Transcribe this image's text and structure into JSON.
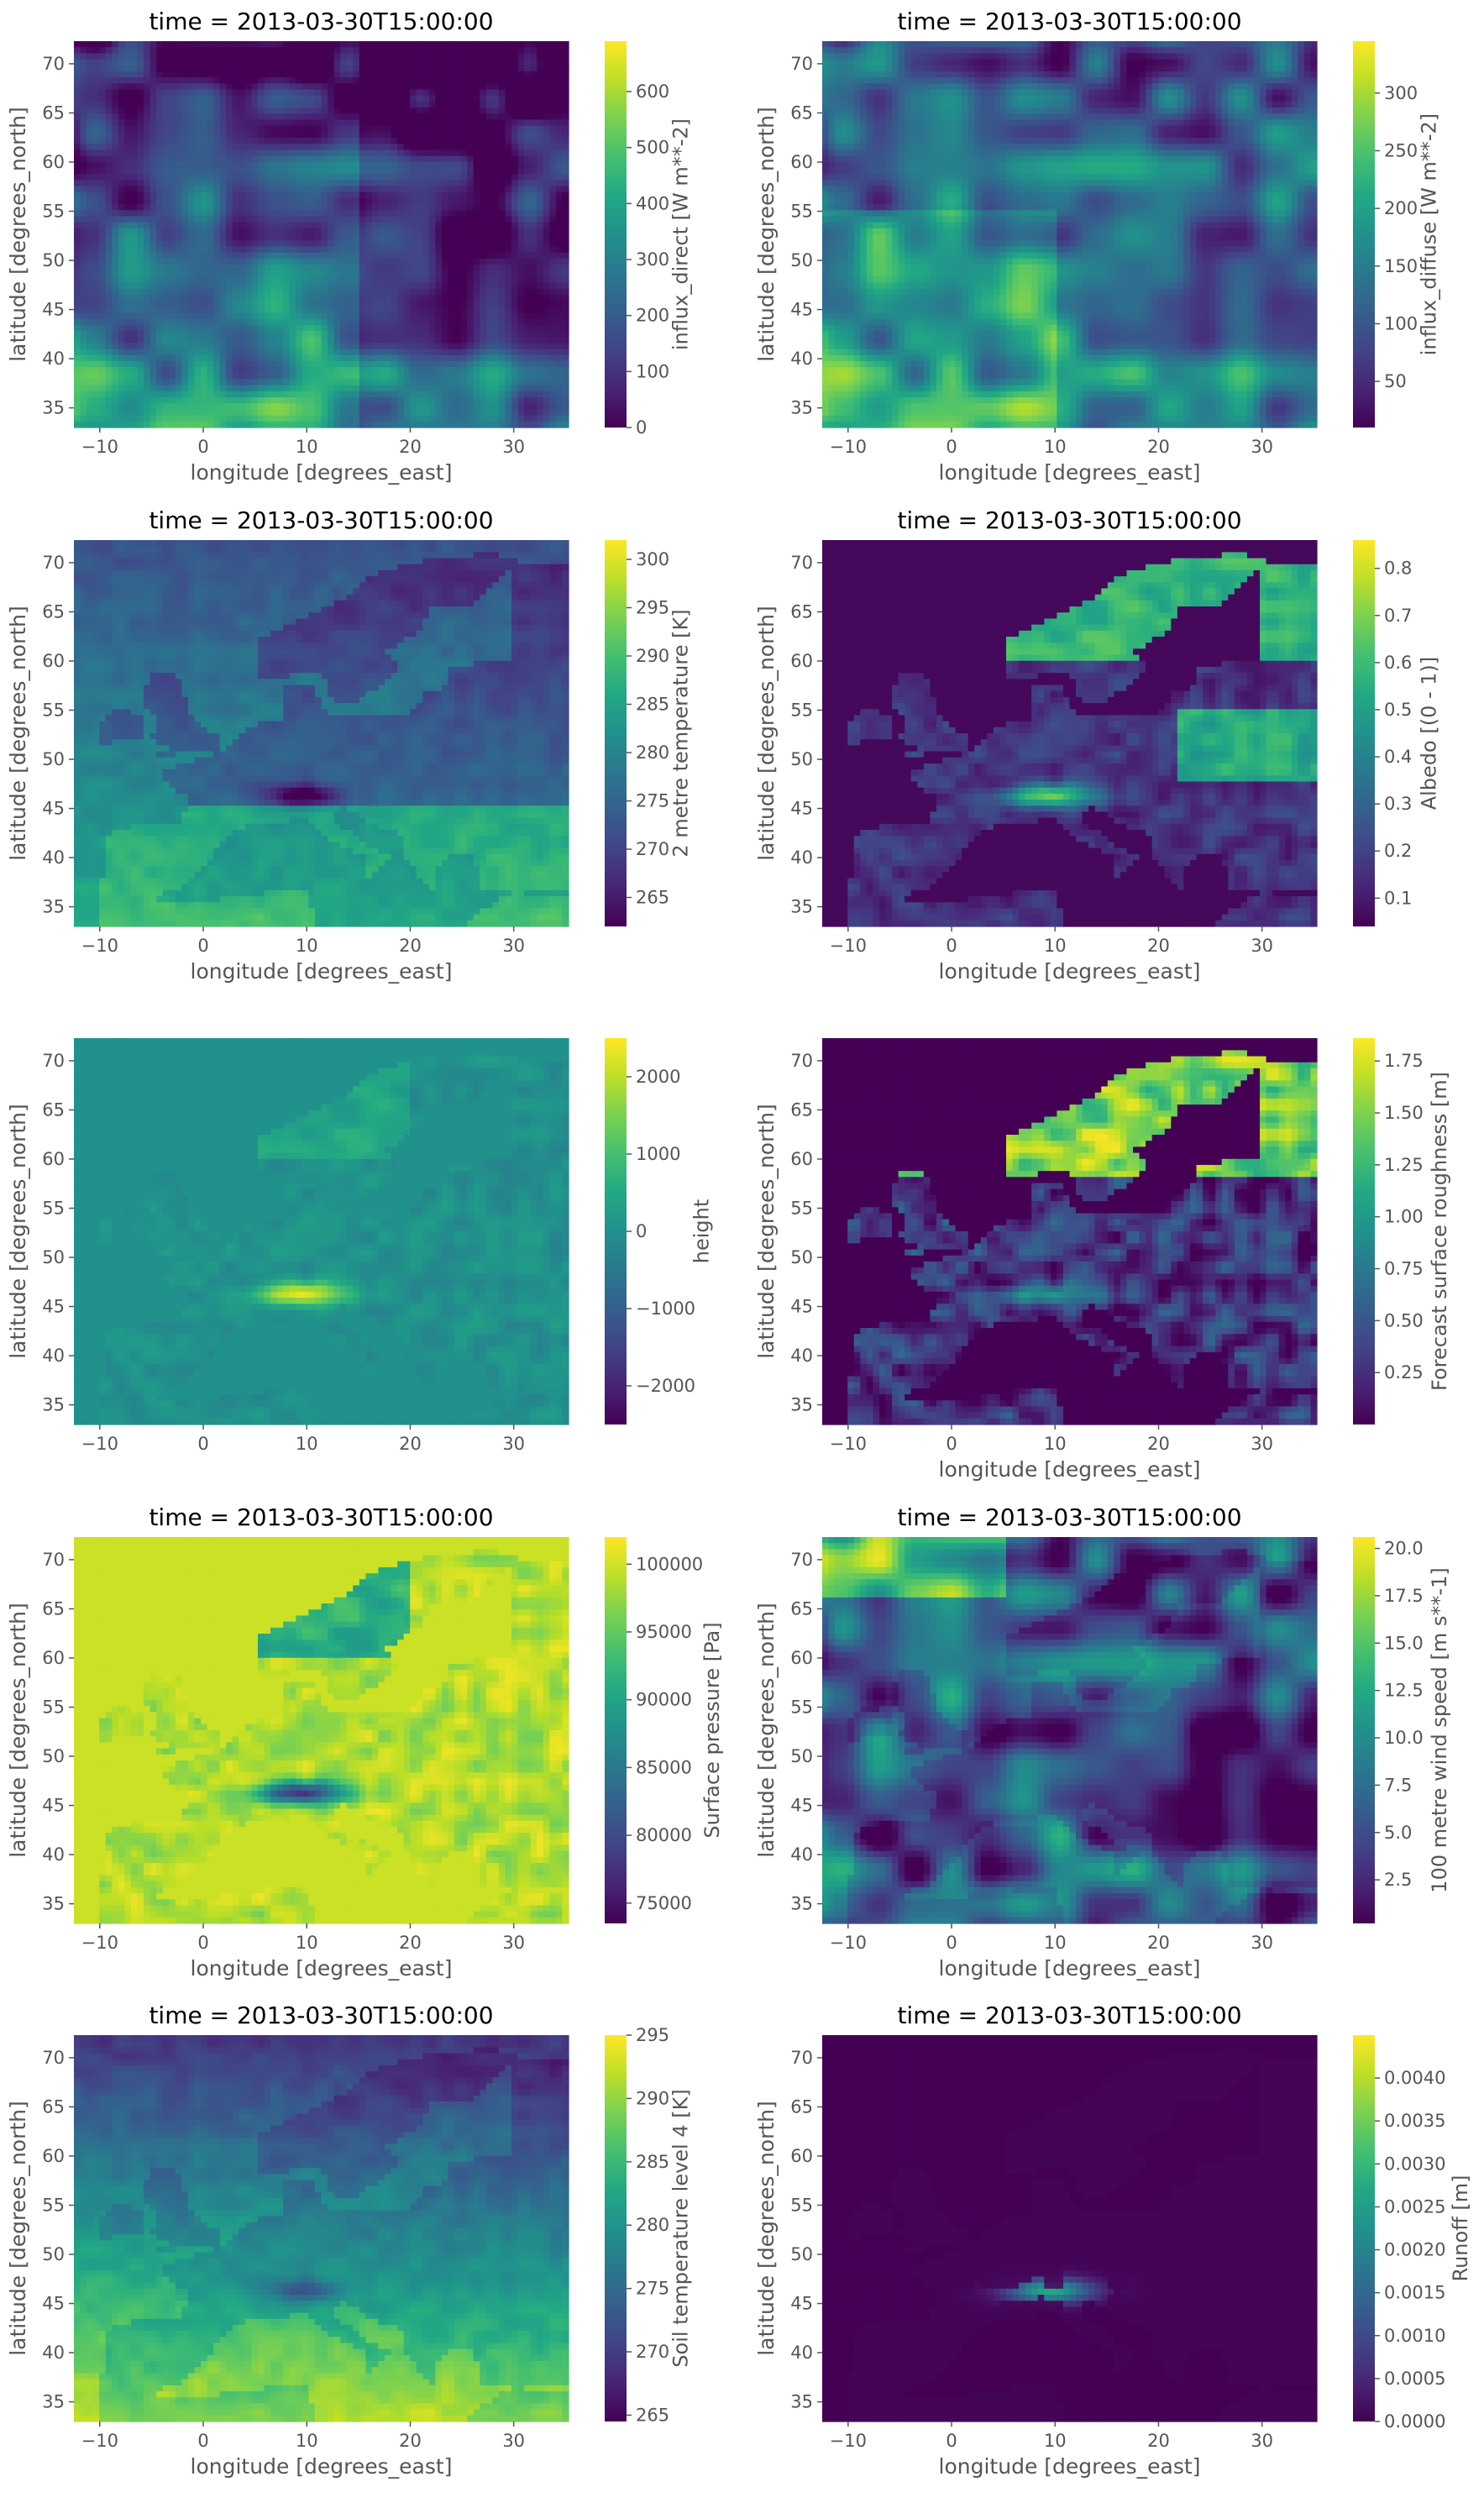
{
  "chart_data": [
    {
      "type": "heatmap",
      "title": "time = 2013-03-30T15:00:00",
      "xlabel": "longitude [degrees_east]",
      "ylabel": "latitude [degrees_north]",
      "xlim": [
        -12.5,
        35.3
      ],
      "ylim": [
        33,
        72.3
      ],
      "xticks": [
        "−10",
        "0",
        "10",
        "20",
        "30"
      ],
      "yticks": [
        "35",
        "40",
        "45",
        "50",
        "55",
        "60",
        "65",
        "70"
      ],
      "colorbar": {
        "label": "influx_direct [W m**-2]",
        "min": 0,
        "max": 690,
        "ticks": [
          0,
          100,
          200,
          300,
          400,
          500,
          600
        ],
        "ticklabels": [
          "0",
          "100",
          "200",
          "300",
          "400",
          "500",
          "600"
        ]
      },
      "grid": true
    },
    {
      "type": "heatmap",
      "title": "time = 2013-03-30T15:00:00",
      "xlabel": "longitude [degrees_east]",
      "ylabel": "latitude [degrees_north]",
      "xlim": [
        -12.5,
        35.3
      ],
      "ylim": [
        33,
        72.3
      ],
      "xticks": [
        "−10",
        "0",
        "10",
        "20",
        "30"
      ],
      "yticks": [
        "35",
        "40",
        "45",
        "50",
        "55",
        "60",
        "65",
        "70"
      ],
      "colorbar": {
        "label": "influx_diffuse [W m**-2]",
        "min": 10,
        "max": 345,
        "ticks": [
          50,
          100,
          150,
          200,
          250,
          300
        ],
        "ticklabels": [
          "50",
          "100",
          "150",
          "200",
          "250",
          "300"
        ]
      },
      "grid": true
    },
    {
      "type": "heatmap",
      "title": "time = 2013-03-30T15:00:00",
      "xlabel": "longitude [degrees_east]",
      "ylabel": "latitude [degrees_north]",
      "xlim": [
        -12.5,
        35.3
      ],
      "ylim": [
        33,
        72.3
      ],
      "xticks": [
        "−10",
        "0",
        "10",
        "20",
        "30"
      ],
      "yticks": [
        "35",
        "40",
        "45",
        "50",
        "55",
        "60",
        "65",
        "70"
      ],
      "colorbar": {
        "label": "2 metre temperature [K]",
        "min": 262,
        "max": 302,
        "ticks": [
          265,
          270,
          275,
          280,
          285,
          290,
          295,
          300
        ],
        "ticklabels": [
          "265",
          "270",
          "275",
          "280",
          "285",
          "290",
          "295",
          "300"
        ]
      },
      "grid": true
    },
    {
      "type": "heatmap",
      "title": "time = 2013-03-30T15:00:00",
      "xlabel": "longitude [degrees_east]",
      "ylabel": "latitude [degrees_north]",
      "xlim": [
        -12.5,
        35.3
      ],
      "ylim": [
        33,
        72.3
      ],
      "xticks": [
        "−10",
        "0",
        "10",
        "20",
        "30"
      ],
      "yticks": [
        "35",
        "40",
        "45",
        "50",
        "55",
        "60",
        "65",
        "70"
      ],
      "colorbar": {
        "label": "Albedo [(0 - 1)]",
        "min": 0.04,
        "max": 0.86,
        "ticks": [
          0.1,
          0.2,
          0.3,
          0.4,
          0.5,
          0.6,
          0.7,
          0.8
        ],
        "ticklabels": [
          "0.1",
          "0.2",
          "0.3",
          "0.4",
          "0.5",
          "0.6",
          "0.7",
          "0.8"
        ]
      },
      "grid": true
    },
    {
      "type": "heatmap",
      "title": "",
      "xlabel": "",
      "ylabel": "latitude [degrees_north]",
      "xlim": [
        -12.5,
        35.3
      ],
      "ylim": [
        33,
        72.3
      ],
      "xticks": [
        "−10",
        "0",
        "10",
        "20",
        "30"
      ],
      "yticks": [
        "35",
        "40",
        "45",
        "50",
        "55",
        "60",
        "65",
        "70"
      ],
      "colorbar": {
        "label": "height",
        "min": -2500,
        "max": 2500,
        "ticks": [
          -2000,
          -1000,
          0,
          1000,
          2000
        ],
        "ticklabels": [
          "−2000",
          "−1000",
          "0",
          "1000",
          "2000"
        ]
      },
      "grid": true
    },
    {
      "type": "heatmap",
      "title": "",
      "xlabel": "longitude [degrees_east]",
      "ylabel": "latitude [degrees_north]",
      "xlim": [
        -12.5,
        35.3
      ],
      "ylim": [
        33,
        72.3
      ],
      "xticks": [
        "−10",
        "0",
        "10",
        "20",
        "30"
      ],
      "yticks": [
        "35",
        "40",
        "45",
        "50",
        "55",
        "60",
        "65",
        "70"
      ],
      "colorbar": {
        "label": "Forecast surface roughness [m]",
        "min": 0.0,
        "max": 1.86,
        "ticks": [
          0.25,
          0.5,
          0.75,
          1.0,
          1.25,
          1.5,
          1.75
        ],
        "ticklabels": [
          "0.25",
          "0.50",
          "0.75",
          "1.00",
          "1.25",
          "1.50",
          "1.75"
        ]
      },
      "grid": true
    },
    {
      "type": "heatmap",
      "title": "time = 2013-03-30T15:00:00",
      "xlabel": "longitude [degrees_east]",
      "ylabel": "latitude [degrees_north]",
      "xlim": [
        -12.5,
        35.3
      ],
      "ylim": [
        33,
        72.3
      ],
      "xticks": [
        "−10",
        "0",
        "10",
        "20",
        "30"
      ],
      "yticks": [
        "35",
        "40",
        "45",
        "50",
        "55",
        "60",
        "65",
        "70"
      ],
      "colorbar": {
        "label": "Surface pressure [Pa]",
        "min": 73500,
        "max": 102000,
        "ticks": [
          75000,
          80000,
          85000,
          90000,
          95000,
          100000
        ],
        "ticklabels": [
          "75000",
          "80000",
          "85000",
          "90000",
          "95000",
          "100000"
        ]
      },
      "grid": true
    },
    {
      "type": "heatmap",
      "title": "time = 2013-03-30T15:00:00",
      "xlabel": "longitude [degrees_east]",
      "ylabel": "latitude [degrees_north]",
      "xlim": [
        -12.5,
        35.3
      ],
      "ylim": [
        33,
        72.3
      ],
      "xticks": [
        "−10",
        "0",
        "10",
        "20",
        "30"
      ],
      "yticks": [
        "35",
        "40",
        "45",
        "50",
        "55",
        "60",
        "65",
        "70"
      ],
      "colorbar": {
        "label": "100 metre wind speed [m s**-1]",
        "min": 0.2,
        "max": 20.6,
        "ticks": [
          2.5,
          5.0,
          7.5,
          10.0,
          12.5,
          15.0,
          17.5,
          20.0
        ],
        "ticklabels": [
          "2.5",
          "5.0",
          "7.5",
          "10.0",
          "12.5",
          "15.0",
          "17.5",
          "20.0"
        ]
      },
      "grid": true
    },
    {
      "type": "heatmap",
      "title": "time = 2013-03-30T15:00:00",
      "xlabel": "longitude [degrees_east]",
      "ylabel": "latitude [degrees_north]",
      "xlim": [
        -12.5,
        35.3
      ],
      "ylim": [
        33,
        72.3
      ],
      "xticks": [
        "−10",
        "0",
        "10",
        "20",
        "30"
      ],
      "yticks": [
        "35",
        "40",
        "45",
        "50",
        "55",
        "60",
        "65",
        "70"
      ],
      "colorbar": {
        "label": "Soil temperature level 4 [K]",
        "min": 264.5,
        "max": 295,
        "ticks": [
          265,
          270,
          275,
          280,
          285,
          290,
          295
        ],
        "ticklabels": [
          "265",
          "270",
          "275",
          "280",
          "285",
          "290",
          "295"
        ]
      },
      "grid": true
    },
    {
      "type": "heatmap",
      "title": "time = 2013-03-30T15:00:00",
      "xlabel": "longitude [degrees_east]",
      "ylabel": "latitude [degrees_north]",
      "xlim": [
        -12.5,
        35.3
      ],
      "ylim": [
        33,
        72.3
      ],
      "xticks": [
        "−10",
        "0",
        "10",
        "20",
        "30"
      ],
      "yticks": [
        "35",
        "40",
        "45",
        "50",
        "55",
        "60",
        "65",
        "70"
      ],
      "colorbar": {
        "label": "Runoff [m]",
        "min": 0,
        "max": 0.0045,
        "ticks": [
          0,
          0.0005,
          0.001,
          0.0015,
          0.002,
          0.0025,
          0.003,
          0.0035,
          0.004
        ],
        "ticklabels": [
          "0.0000",
          "0.0005",
          "0.0010",
          "0.0015",
          "0.0020",
          "0.0025",
          "0.0030",
          "0.0035",
          "0.0040"
        ]
      },
      "grid": true
    }
  ],
  "colormap": "viridis",
  "style": {
    "panel_bg": "#e5e5e5",
    "text": "#555555",
    "title_text": "#000000"
  }
}
